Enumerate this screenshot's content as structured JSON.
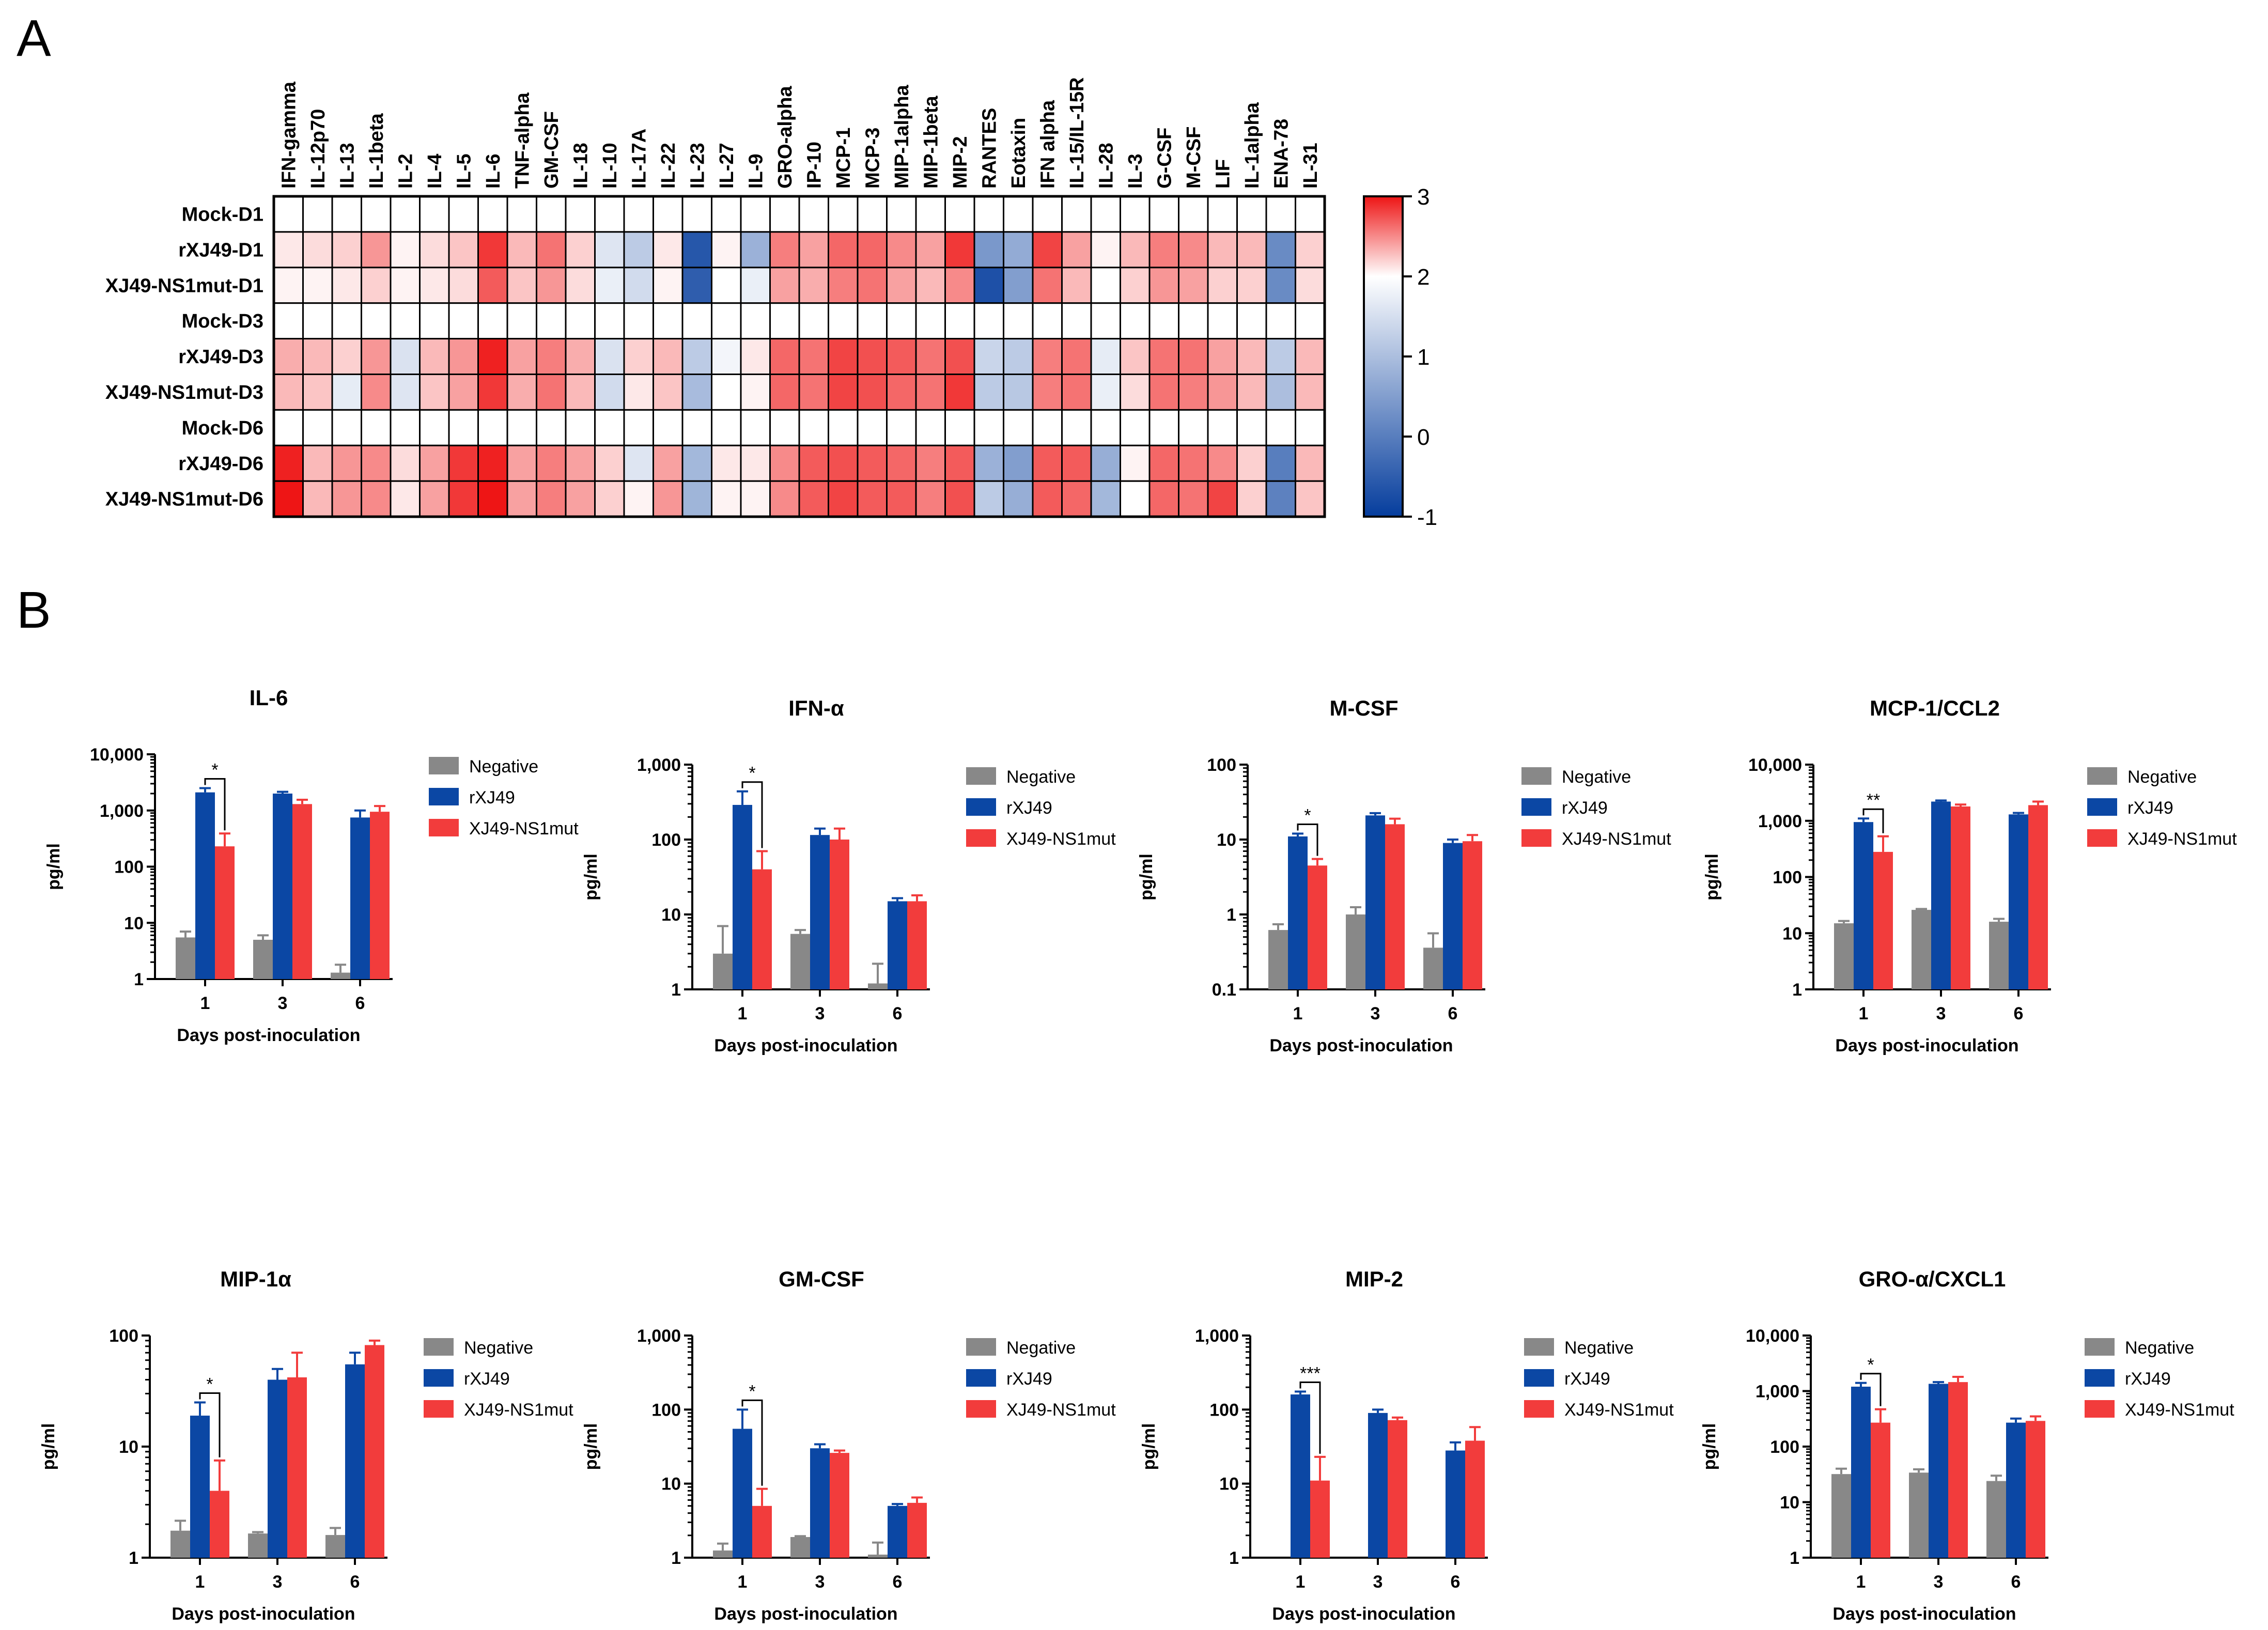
{
  "panel_labels": {
    "a": "A",
    "b": "B"
  },
  "colors": {
    "negative": "#888888",
    "rxj49": "#0b47a4",
    "mut": "#f23c3c",
    "hm_low": "#053d9d",
    "hm_mid": "#ffffff",
    "hm_high": "#ee1515"
  },
  "legend": {
    "negative": "Negative",
    "rxj49": "rXJ49",
    "mut": "XJ49-NS1mut"
  },
  "chart_data": [
    {
      "type": "heatmap",
      "title": "A",
      "columns": [
        "IFN-gamma",
        "IL-12p70",
        "IL-13",
        "IL-1beta",
        "IL-2",
        "IL-4",
        "IL-5",
        "IL-6",
        "TNF-alpha",
        "GM-CSF",
        "IL-18",
        "IL-10",
        "IL-17A",
        "IL-22",
        "IL-23",
        "IL-27",
        "IL-9",
        "GRO-alpha",
        "IP-10",
        "MCP-1",
        "MCP-3",
        "MIP-1alpha",
        "MIP-1beta",
        "MIP-2",
        "RANTES",
        "Eotaxin",
        "IFN alpha",
        "IL-15/IL-15R",
        "IL-28",
        "IL-3",
        "G-CSF",
        "M-CSF",
        "LIF",
        "IL-1alpha",
        "ENA-78",
        "IL-31"
      ],
      "rows": [
        "Mock-D1",
        "rXJ49-D1",
        "XJ49-NS1mut-D1",
        "Mock-D3",
        "rXJ49-D3",
        "XJ49-NS1mut-D3",
        "Mock-D6",
        "rXJ49-D6",
        "XJ49-NS1mut-D6"
      ],
      "values": [
        [
          2,
          2,
          2,
          2,
          2,
          2,
          2,
          2,
          2,
          2,
          2,
          2,
          2,
          2,
          2,
          2,
          2,
          2,
          2,
          2,
          2,
          2,
          2,
          2,
          2,
          2,
          2,
          2,
          2,
          2,
          2,
          2,
          2,
          2,
          2,
          2
        ],
        [
          2.1,
          2.15,
          2.2,
          2.45,
          2.05,
          2.15,
          2.25,
          2.85,
          2.3,
          2.6,
          2.2,
          1.6,
          1.2,
          2.1,
          -0.6,
          2.05,
          0.8,
          2.55,
          2.4,
          2.65,
          2.65,
          2.5,
          2.4,
          2.85,
          0.4,
          0.7,
          2.8,
          2.4,
          2.05,
          2.3,
          2.55,
          2.5,
          2.3,
          2.3,
          0.2,
          2.2
        ],
        [
          2.05,
          2.05,
          2.1,
          2.2,
          2.05,
          2.1,
          2.15,
          2.7,
          2.25,
          2.45,
          2.15,
          1.75,
          1.45,
          2.05,
          -0.5,
          2.0,
          1.75,
          2.4,
          2.35,
          2.55,
          2.6,
          2.4,
          2.3,
          2.5,
          -0.7,
          0.5,
          2.6,
          2.3,
          2.0,
          2.2,
          2.45,
          2.4,
          2.2,
          2.2,
          0.2,
          2.15
        ],
        [
          2,
          2,
          2,
          2,
          2,
          2,
          2,
          2,
          2,
          2,
          2,
          2,
          2,
          2,
          2,
          2,
          2,
          2,
          2,
          2,
          2,
          2,
          2,
          2,
          2,
          2,
          2,
          2,
          2,
          2,
          2,
          2,
          2,
          2,
          2,
          2
        ],
        [
          2.35,
          2.3,
          2.2,
          2.45,
          1.55,
          2.3,
          2.45,
          2.95,
          2.4,
          2.55,
          2.35,
          1.55,
          2.2,
          2.3,
          1.2,
          1.85,
          2.1,
          2.65,
          2.6,
          2.8,
          2.75,
          2.7,
          2.6,
          2.75,
          1.35,
          1.2,
          2.55,
          2.6,
          1.7,
          2.25,
          2.6,
          2.6,
          2.4,
          2.3,
          1.2,
          2.3
        ],
        [
          2.3,
          2.25,
          1.7,
          2.5,
          1.6,
          2.25,
          2.4,
          2.85,
          2.35,
          2.6,
          2.3,
          1.45,
          2.1,
          2.25,
          0.95,
          2.0,
          2.05,
          2.65,
          2.6,
          2.8,
          2.75,
          2.65,
          2.6,
          2.85,
          1.2,
          1.15,
          2.55,
          2.6,
          1.75,
          2.15,
          2.6,
          2.55,
          2.45,
          2.3,
          1.0,
          2.3
        ],
        [
          2,
          2,
          2,
          2,
          2,
          2,
          2,
          2,
          2,
          2,
          2,
          2,
          2,
          2,
          2,
          2,
          2,
          2,
          2,
          2,
          2,
          2,
          2,
          2,
          2,
          2,
          2,
          2,
          2,
          2,
          2,
          2,
          2,
          2,
          2,
          2
        ],
        [
          2.95,
          2.3,
          2.45,
          2.5,
          2.15,
          2.4,
          2.85,
          2.95,
          2.4,
          2.55,
          2.4,
          2.2,
          1.6,
          2.4,
          0.9,
          2.1,
          2.1,
          2.5,
          2.7,
          2.75,
          2.7,
          2.65,
          2.55,
          2.7,
          0.8,
          0.5,
          2.7,
          2.7,
          0.75,
          2.05,
          2.65,
          2.6,
          2.5,
          2.2,
          0.0,
          2.3
        ],
        [
          3.0,
          2.3,
          2.45,
          2.5,
          2.1,
          2.4,
          2.85,
          3.0,
          2.4,
          2.55,
          2.4,
          2.2,
          2.05,
          2.45,
          0.85,
          2.05,
          2.05,
          2.5,
          2.7,
          2.8,
          2.7,
          2.7,
          2.55,
          2.75,
          1.2,
          0.75,
          2.7,
          2.65,
          0.9,
          2.0,
          2.65,
          2.6,
          2.8,
          2.2,
          0.05,
          2.25
        ]
      ],
      "colorbar": {
        "min": -1,
        "max": 3,
        "ticks": [
          "3",
          "2",
          "1",
          "0",
          "-1"
        ]
      }
    },
    {
      "type": "bar",
      "title": "IL-6",
      "xlabel": "Days post-inoculation",
      "ylabel": "pg/ml",
      "categories": [
        "1",
        "3",
        "6"
      ],
      "yticks": [
        "1",
        "10",
        "100",
        "1,000",
        "10,000"
      ],
      "ylim_log10": [
        0,
        4
      ],
      "series": [
        {
          "name": "Negative",
          "values": [
            5.5,
            5,
            1.3
          ],
          "errors": [
            1.5,
            1,
            0.5
          ]
        },
        {
          "name": "rXJ49",
          "values": [
            2100,
            2000,
            750
          ],
          "errors": [
            400,
            150,
            250
          ]
        },
        {
          "name": "XJ49-NS1mut",
          "values": [
            230,
            1300,
            950
          ],
          "errors": [
            160,
            250,
            250
          ]
        }
      ],
      "significance": [
        {
          "group": "1",
          "label": "*"
        }
      ]
    },
    {
      "type": "bar",
      "title": "IFN-α",
      "xlabel": "Days post-inoculation",
      "ylabel": "pg/ml",
      "categories": [
        "1",
        "3",
        "6"
      ],
      "yticks": [
        "1",
        "10",
        "100",
        "1,000"
      ],
      "ylim_log10": [
        0,
        3
      ],
      "series": [
        {
          "name": "Negative",
          "values": [
            3,
            5.5,
            1.2
          ],
          "errors": [
            4,
            0.7,
            1
          ]
        },
        {
          "name": "rXJ49",
          "values": [
            290,
            115,
            15
          ],
          "errors": [
            150,
            25,
            1.5
          ]
        },
        {
          "name": "XJ49-NS1mut",
          "values": [
            40,
            100,
            15
          ],
          "errors": [
            30,
            40,
            3
          ]
        }
      ],
      "significance": [
        {
          "group": "1",
          "label": "*"
        }
      ]
    },
    {
      "type": "bar",
      "title": "M-CSF",
      "xlabel": "Days post-inoculation",
      "ylabel": "pg/ml",
      "categories": [
        "1",
        "3",
        "6"
      ],
      "yticks": [
        "0.1",
        "1",
        "10",
        "100"
      ],
      "ylim_log10": [
        -1,
        2
      ],
      "series": [
        {
          "name": "Negative",
          "values": [
            0.62,
            1.0,
            0.36
          ],
          "errors": [
            0.12,
            0.25,
            0.2
          ]
        },
        {
          "name": "rXJ49",
          "values": [
            11,
            21,
            9
          ],
          "errors": [
            1,
            1.5,
            1
          ]
        },
        {
          "name": "XJ49-NS1mut",
          "values": [
            4.5,
            16,
            9.5
          ],
          "errors": [
            1,
            3,
            2
          ]
        }
      ],
      "significance": [
        {
          "group": "1",
          "label": "*"
        }
      ]
    },
    {
      "type": "bar",
      "title": "MCP-1/CCL2",
      "xlabel": "Days post-inoculation",
      "ylabel": "pg/ml",
      "categories": [
        "1",
        "3",
        "6"
      ],
      "yticks": [
        "1",
        "10",
        "100",
        "1,000",
        "10,000"
      ],
      "ylim_log10": [
        0,
        4
      ],
      "series": [
        {
          "name": "Negative",
          "values": [
            15,
            26,
            16
          ],
          "errors": [
            1.5,
            1,
            2
          ]
        },
        {
          "name": "rXJ49",
          "values": [
            950,
            2200,
            1300
          ],
          "errors": [
            150,
            100,
            80
          ]
        },
        {
          "name": "XJ49-NS1mut",
          "values": [
            280,
            1800,
            1900
          ],
          "errors": [
            250,
            150,
            300
          ]
        }
      ],
      "significance": [
        {
          "group": "1",
          "label": "**"
        }
      ]
    },
    {
      "type": "bar",
      "title": "MIP-1α",
      "xlabel": "Days post-inoculation",
      "ylabel": "pg/ml",
      "categories": [
        "1",
        "3",
        "6"
      ],
      "yticks": [
        "1",
        "10",
        "100"
      ],
      "ylim_log10": [
        0,
        2
      ],
      "series": [
        {
          "name": "Negative",
          "values": [
            1.75,
            1.65,
            1.6
          ],
          "errors": [
            0.4,
            0.05,
            0.25
          ]
        },
        {
          "name": "rXJ49",
          "values": [
            19,
            40,
            55
          ],
          "errors": [
            6,
            10,
            15
          ]
        },
        {
          "name": "XJ49-NS1mut",
          "values": [
            4,
            42,
            82
          ],
          "errors": [
            3.5,
            28,
            8
          ]
        }
      ],
      "significance": [
        {
          "group": "1",
          "label": "*"
        }
      ]
    },
    {
      "type": "bar",
      "title": "GM-CSF",
      "xlabel": "Days post-inoculation",
      "ylabel": "pg/ml",
      "categories": [
        "1",
        "3",
        "6"
      ],
      "yticks": [
        "1",
        "10",
        "100",
        "1,000"
      ],
      "ylim_log10": [
        0,
        3
      ],
      "series": [
        {
          "name": "Negative",
          "values": [
            1.25,
            1.9,
            1.1
          ],
          "errors": [
            0.3,
            0.05,
            0.5
          ]
        },
        {
          "name": "rXJ49",
          "values": [
            55,
            30,
            5
          ],
          "errors": [
            45,
            4,
            0.3
          ]
        },
        {
          "name": "XJ49-NS1mut",
          "values": [
            5,
            26,
            5.5
          ],
          "errors": [
            3.5,
            2,
            1
          ]
        }
      ],
      "significance": [
        {
          "group": "1",
          "label": "*"
        }
      ]
    },
    {
      "type": "bar",
      "title": "MIP-2",
      "xlabel": "Days post-inoculation",
      "ylabel": "pg/ml",
      "categories": [
        "1",
        "3",
        "6"
      ],
      "yticks": [
        "1",
        "10",
        "100",
        "1,000"
      ],
      "ylim_log10": [
        0,
        3
      ],
      "series": [
        {
          "name": "Negative",
          "values": [
            null,
            null,
            null
          ],
          "errors": [
            0,
            0,
            0
          ]
        },
        {
          "name": "rXJ49",
          "values": [
            160,
            90,
            28
          ],
          "errors": [
            15,
            10,
            8
          ]
        },
        {
          "name": "XJ49-NS1mut",
          "values": [
            11,
            72,
            38
          ],
          "errors": [
            12,
            6,
            20
          ]
        }
      ],
      "significance": [
        {
          "group": "1",
          "label": "***"
        }
      ]
    },
    {
      "type": "bar",
      "title": "GRO-α/CXCL1",
      "xlabel": "Days post-inoculation",
      "ylabel": "pg/ml",
      "categories": [
        "1",
        "3",
        "6"
      ],
      "yticks": [
        "1",
        "10",
        "100",
        "1,000",
        "10,000"
      ],
      "ylim_log10": [
        0,
        4
      ],
      "series": [
        {
          "name": "Negative",
          "values": [
            32,
            34,
            24
          ],
          "errors": [
            8,
            5,
            6
          ]
        },
        {
          "name": "rXJ49",
          "values": [
            1200,
            1350,
            270
          ],
          "errors": [
            200,
            100,
            50
          ]
        },
        {
          "name": "XJ49-NS1mut",
          "values": [
            270,
            1450,
            290
          ],
          "errors": [
            200,
            350,
            60
          ]
        }
      ],
      "significance": [
        {
          "group": "1",
          "label": "*"
        }
      ]
    }
  ]
}
